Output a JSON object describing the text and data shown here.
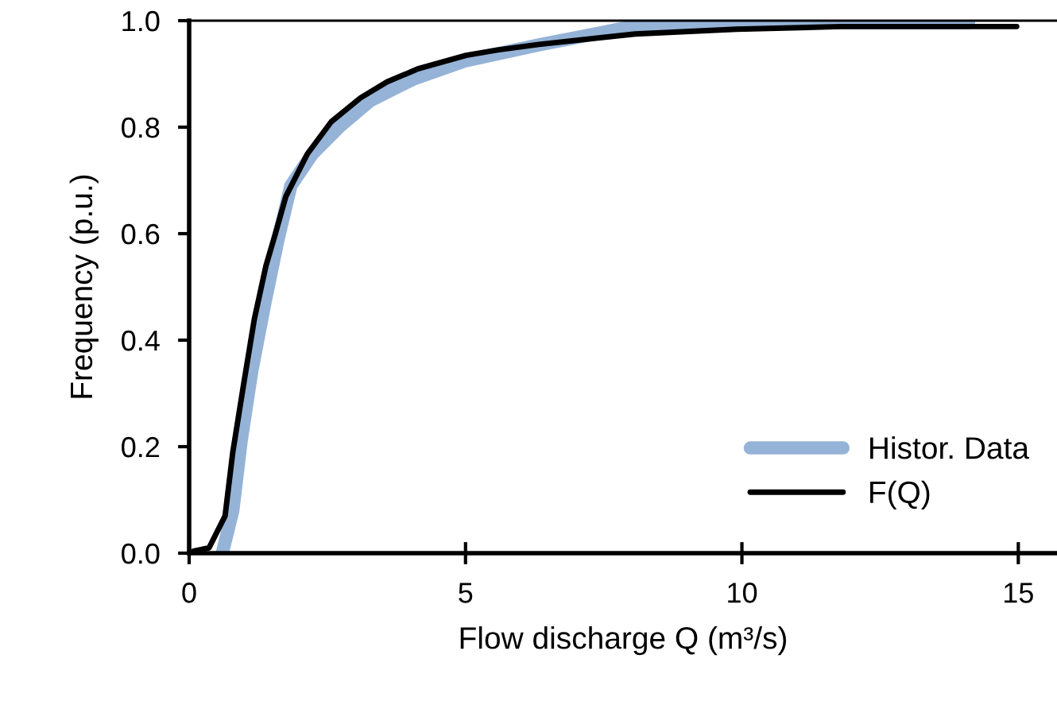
{
  "chart_data": {
    "type": "line",
    "xlabel": "Flow discharge Q (m³/s)",
    "ylabel": "Frequency (p.u.)",
    "xlim": [
      0,
      15.7
    ],
    "xticks": [
      0,
      5,
      10,
      15
    ],
    "ylim": [
      0,
      1
    ],
    "yticks": [
      {
        "value": 0,
        "label": "0.0"
      },
      {
        "value": 0.2,
        "label": "0.2"
      },
      {
        "value": 0.4,
        "label": "0.4"
      },
      {
        "value": 0.6,
        "label": "0.6"
      },
      {
        "value": 0.8,
        "label": "0.8"
      },
      {
        "value": 1,
        "label": "1.0"
      }
    ],
    "grid": false,
    "legend": "bottom right",
    "marker": "none",
    "line_style": "solid",
    "series": [
      {
        "name": "Histor. Data",
        "color": "#95b3d7",
        "x": [
          0.6,
          0.79,
          0.94,
          1.13,
          1.37,
          1.61,
          1.84,
          2.23,
          2.71,
          3.28,
          4.05,
          5.01,
          6.35,
          8.07,
          9.9,
          14.1
        ],
        "values": [
          0,
          0.08,
          0.21,
          0.34,
          0.47,
          0.59,
          0.69,
          0.75,
          0.8,
          0.85,
          0.89,
          0.925,
          0.955,
          0.99,
          0.996,
          0.996
        ]
      },
      {
        "name": "F(Q)",
        "color": "#000000",
        "x": [
          0.08,
          0.36,
          0.65,
          0.79,
          0.99,
          1.18,
          1.39,
          1.56,
          1.75,
          2.14,
          2.57,
          3.1,
          3.58,
          4.15,
          5.01,
          5.58,
          6.3,
          8.07,
          9.9,
          11.8,
          14.97
        ],
        "values": [
          0.004,
          0.01,
          0.07,
          0.19,
          0.32,
          0.44,
          0.54,
          0.6,
          0.67,
          0.75,
          0.81,
          0.855,
          0.885,
          0.91,
          0.935,
          0.945,
          0.955,
          0.975,
          0.984,
          0.989,
          0.989
        ]
      }
    ]
  }
}
